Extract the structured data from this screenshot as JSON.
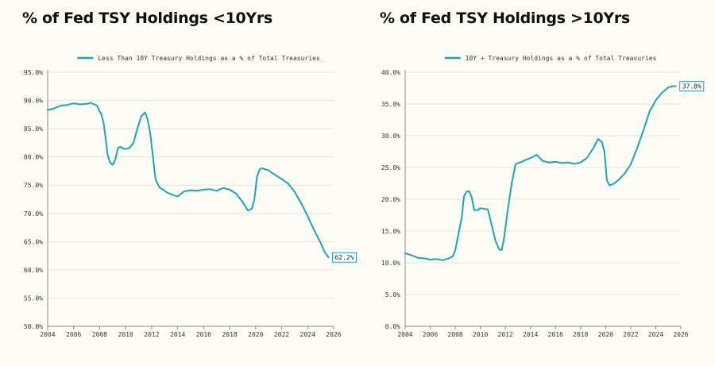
{
  "colors": {
    "line": "#1aa6b7",
    "grid": "#e3e3dc",
    "axis": "#888888",
    "background": "#fdfdf3"
  },
  "chart_data": [
    {
      "type": "line",
      "title": "% of Fed TSY Holdings <10Yrs",
      "legend": "Less Than 10Y Treasury Holdings as a % of Total Treasuries",
      "legend_position": "top-center",
      "xlim": [
        2004,
        2026
      ],
      "ylim": [
        50,
        95
      ],
      "x_ticks": [
        2004,
        2006,
        2008,
        2010,
        2012,
        2014,
        2016,
        2018,
        2020,
        2022,
        2024,
        2026
      ],
      "x_tick_labels": [
        "2004",
        "2006",
        "2008",
        "2010",
        "2012",
        "2014",
        "2016",
        "2018",
        "2020",
        "2022",
        "2024",
        "2026"
      ],
      "y_ticks": [
        50,
        55,
        60,
        65,
        70,
        75,
        80,
        85,
        90,
        95
      ],
      "y_tick_labels": [
        "50.0%",
        "55.0%",
        "60.0%",
        "65.0%",
        "70.0%",
        "75.0%",
        "80.0%",
        "85.0%",
        "90.0%",
        "95.0%"
      ],
      "end_label": "62.2%",
      "series": [
        {
          "name": "Less Than 10Y Treasury Holdings as a % of Total Treasuries",
          "x": [
            2004.0,
            2004.5,
            2005.0,
            2005.5,
            2006.0,
            2006.5,
            2007.0,
            2007.3,
            2007.6,
            2007.8,
            2008.0,
            2008.1,
            2008.3,
            2008.45,
            2008.6,
            2008.8,
            2009.0,
            2009.2,
            2009.4,
            2009.6,
            2009.8,
            2010.0,
            2010.3,
            2010.6,
            2010.9,
            2011.2,
            2011.5,
            2011.7,
            2011.9,
            2012.1,
            2012.3,
            2012.6,
            2012.9,
            2013.2,
            2013.6,
            2014.0,
            2014.5,
            2015.0,
            2015.5,
            2016.0,
            2016.5,
            2017.0,
            2017.5,
            2018.0,
            2018.5,
            2019.0,
            2019.4,
            2019.7,
            2019.9,
            2020.1,
            2020.3,
            2020.5,
            2021.0,
            2021.5,
            2022.0,
            2022.5,
            2023.0,
            2023.5,
            2024.0,
            2024.5,
            2025.0,
            2025.3,
            2025.6
          ],
          "y": [
            88.3,
            88.6,
            89.1,
            89.2,
            89.5,
            89.3,
            89.4,
            89.6,
            89.3,
            89.1,
            88.0,
            87.8,
            86.0,
            83.5,
            80.5,
            79.0,
            78.6,
            79.5,
            81.6,
            81.8,
            81.5,
            81.4,
            81.6,
            82.5,
            85.0,
            87.2,
            87.9,
            86.5,
            84.0,
            80.0,
            76.0,
            74.6,
            74.2,
            73.7,
            73.3,
            73.0,
            73.9,
            74.1,
            74.0,
            74.2,
            74.3,
            74.0,
            74.5,
            74.2,
            73.5,
            72.0,
            70.5,
            70.8,
            72.5,
            76.5,
            77.8,
            78.0,
            77.6,
            76.8,
            76.1,
            75.3,
            73.8,
            71.8,
            69.5,
            67.0,
            64.8,
            63.2,
            62.2
          ]
        }
      ]
    },
    {
      "type": "line",
      "title": "% of Fed TSY Holdings >10Yrs",
      "legend": "10Y + Treasury Holdings as a % of Total Treasuries",
      "legend_position": "top-center",
      "xlim": [
        2004,
        2026
      ],
      "ylim": [
        0,
        40
      ],
      "x_ticks": [
        2004,
        2006,
        2008,
        2010,
        2012,
        2014,
        2016,
        2018,
        2020,
        2022,
        2024,
        2026
      ],
      "x_tick_labels": [
        "2004",
        "2006",
        "2008",
        "2010",
        "2012",
        "2014",
        "2016",
        "2018",
        "2020",
        "2022",
        "2024",
        "2026"
      ],
      "y_ticks": [
        0,
        5,
        10,
        15,
        20,
        25,
        30,
        35,
        40
      ],
      "y_tick_labels": [
        "0.0%",
        "5.0%",
        "10.0%",
        "15.0%",
        "20.0%",
        "25.0%",
        "30.0%",
        "35.0%",
        "40.0%"
      ],
      "end_label": "37.8%",
      "series": [
        {
          "name": "10Y + Treasury Holdings as a % of Total Treasuries",
          "x": [
            2004.0,
            2004.5,
            2005.0,
            2005.5,
            2006.0,
            2006.5,
            2007.0,
            2007.5,
            2007.8,
            2008.0,
            2008.2,
            2008.5,
            2008.7,
            2008.9,
            2009.1,
            2009.3,
            2009.5,
            2009.8,
            2010.0,
            2010.3,
            2010.6,
            2010.9,
            2011.2,
            2011.5,
            2011.7,
            2011.9,
            2012.2,
            2012.5,
            2012.8,
            2013.0,
            2013.3,
            2013.6,
            2014.0,
            2014.5,
            2015.0,
            2015.5,
            2016.0,
            2016.5,
            2017.0,
            2017.5,
            2018.0,
            2018.5,
            2019.0,
            2019.4,
            2019.7,
            2019.9,
            2020.1,
            2020.3,
            2020.6,
            2021.0,
            2021.5,
            2022.0,
            2022.5,
            2023.0,
            2023.5,
            2024.0,
            2024.5,
            2025.0,
            2025.3,
            2025.6
          ],
          "y": [
            11.5,
            11.2,
            10.8,
            10.7,
            10.5,
            10.6,
            10.4,
            10.7,
            11.0,
            12.0,
            14.0,
            17.0,
            20.5,
            21.2,
            21.3,
            20.4,
            18.3,
            18.3,
            18.6,
            18.5,
            18.4,
            16.0,
            13.5,
            12.1,
            12.0,
            14.0,
            18.5,
            22.5,
            25.5,
            25.7,
            25.9,
            26.2,
            26.5,
            27.0,
            26.0,
            25.8,
            25.9,
            25.7,
            25.8,
            25.6,
            25.8,
            26.5,
            28.0,
            29.5,
            29.0,
            27.5,
            23.0,
            22.2,
            22.4,
            23.0,
            24.0,
            25.5,
            28.0,
            30.8,
            33.8,
            35.6,
            36.8,
            37.6,
            37.8,
            37.8
          ]
        }
      ]
    }
  ]
}
